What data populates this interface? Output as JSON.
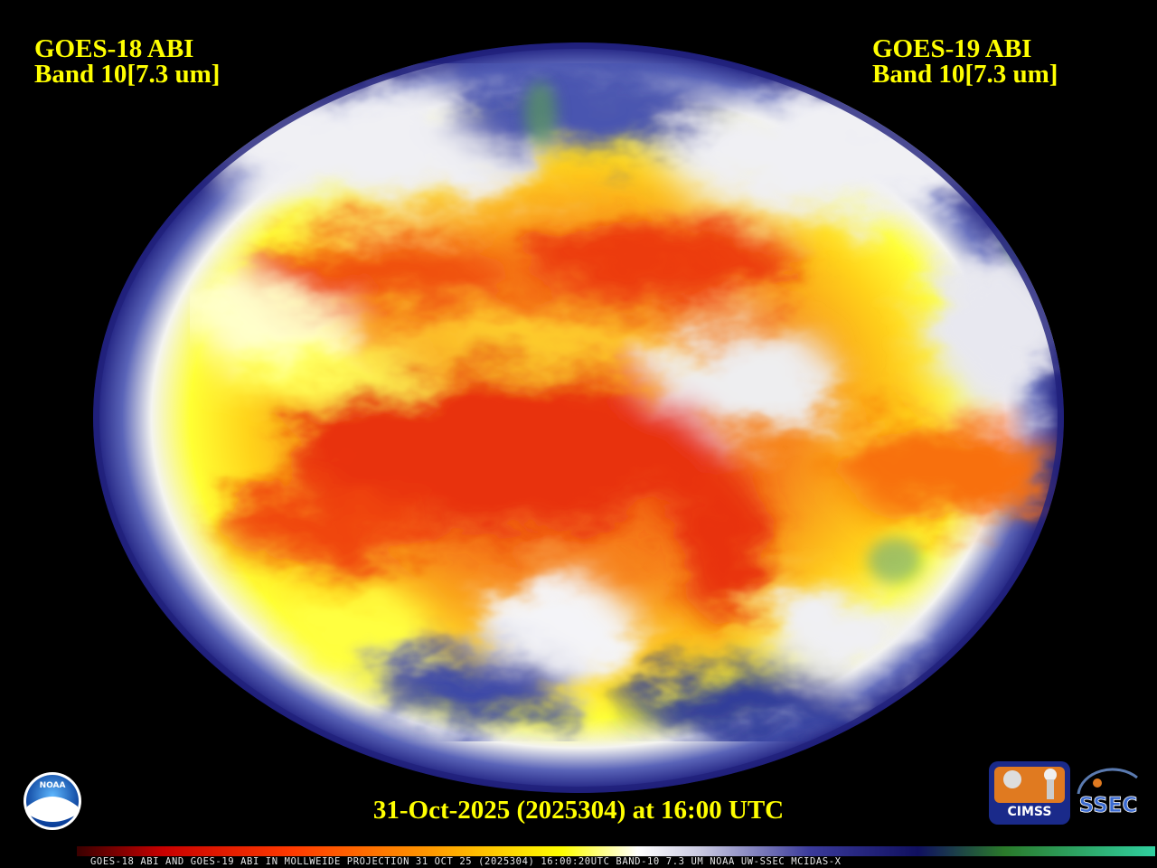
{
  "header": {
    "left": {
      "line1": "GOES-18 ABI",
      "line2": "Band 10[7.3 um]"
    },
    "right": {
      "line1": "GOES-19 ABI",
      "line2": "Band 10[7.3 um]"
    }
  },
  "timestamp": "31-Oct-2025 (2025304) at 16:00 UTC",
  "footer": "GOES-18 ABI AND GOES-19 ABI IN MOLLWEIDE PROJECTION 31 OCT 25 (2025304) 16:00:20UTC BAND-10 7.3 UM NOAA UW-SSEC MCIDAS-X",
  "logos": {
    "noaa": "NOAA",
    "cimss": "CIMSS",
    "ssec": "SSEC"
  }
}
